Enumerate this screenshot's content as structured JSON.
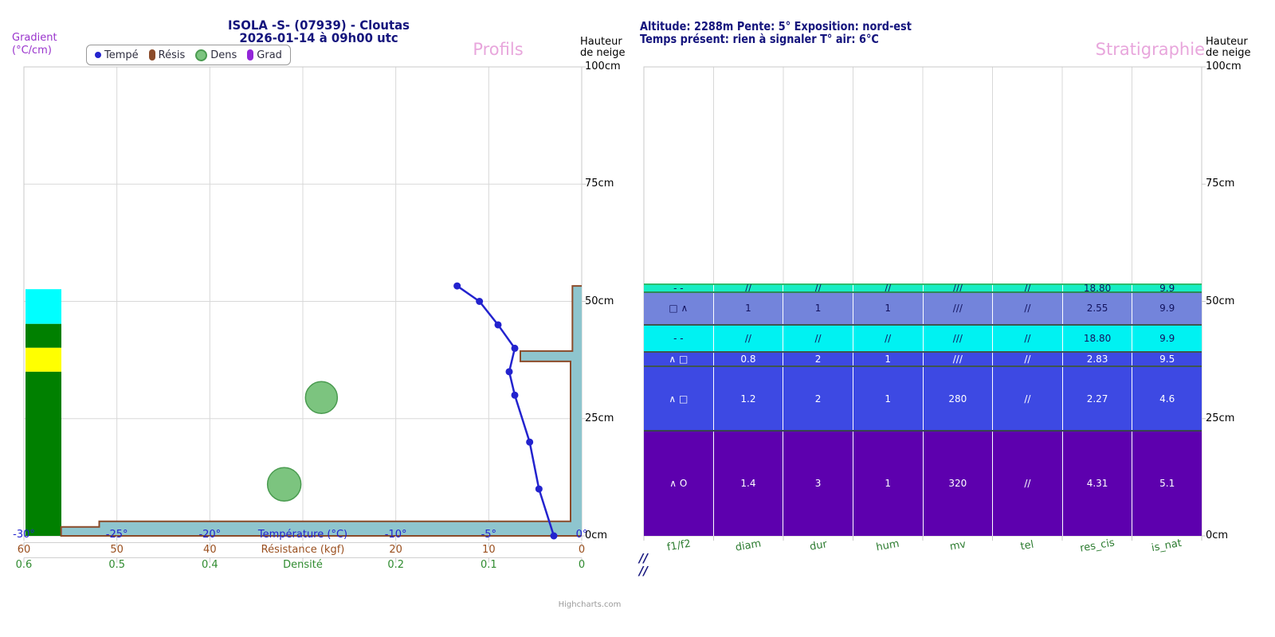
{
  "watermark": "Highcharts.com",
  "header": {
    "title": "ISOLA -S- (07939) - Cloutas",
    "subtitle": "2026-01-14 à 09h00 utc",
    "right_line1": "Altitude: 2288m Pente: 5° Exposition: nord-est",
    "right_line2": "Temps présent: rien à signaler T° air: 6°C"
  },
  "panels": {
    "left": {
      "title": "Profils",
      "gradient_label": [
        "Gradient",
        "(°C/cm)"
      ],
      "height_label": [
        "Hauteur",
        "de neige"
      ]
    },
    "right": {
      "title": "Stratigraphie",
      "height_label": [
        "Hauteur",
        "de neige"
      ],
      "surface_marks": [
        "//",
        "//"
      ]
    }
  },
  "legend": {
    "items": [
      {
        "label": "Tempé",
        "marker": "dot",
        "color": "#2323CE",
        "border": "#2323CE"
      },
      {
        "label": "Résis",
        "marker": "pill",
        "color": "#8B4B2A",
        "border": "#8B4B2A"
      },
      {
        "label": "Dens",
        "marker": "bubble",
        "color": "#7CC47F",
        "border": "#4A9B50"
      },
      {
        "label": "Grad",
        "marker": "pill",
        "color": "#9326D9",
        "border": "#9326D9"
      }
    ]
  },
  "chart_data": [
    {
      "panel": "Profils",
      "type": "line",
      "series": "Température",
      "color": "#2323CE",
      "x_axis": {
        "title": "Température (°C)",
        "range": [
          -30,
          0
        ],
        "tick_labels": [
          "-30°",
          "-25°",
          "-20°",
          null,
          "-10°",
          "-5°",
          "0°"
        ],
        "color": "#2323CE"
      },
      "y_axis": {
        "title": "Hauteur de neige",
        "range": [
          0,
          100
        ],
        "tick_values": [
          0,
          25,
          50,
          75,
          100
        ],
        "tick_labels": [
          "0cm",
          "25cm",
          "50cm",
          "75cm",
          "100cm"
        ]
      },
      "points": [
        {
          "height_cm": 53.3,
          "temp_c": -6.7
        },
        {
          "height_cm": 50,
          "temp_c": -5.5
        },
        {
          "height_cm": 45,
          "temp_c": -4.5
        },
        {
          "height_cm": 40,
          "temp_c": -3.6
        },
        {
          "height_cm": 35,
          "temp_c": -3.9
        },
        {
          "height_cm": 30,
          "temp_c": -3.6
        },
        {
          "height_cm": 20,
          "temp_c": -2.8
        },
        {
          "height_cm": 10,
          "temp_c": -2.3
        },
        {
          "height_cm": 0,
          "temp_c": -1.5
        }
      ]
    },
    {
      "panel": "Profils",
      "type": "area",
      "series": "Résistance",
      "fill": "#8EC5CE",
      "stroke": "#8B4B2A",
      "x_axis": {
        "title": "Résistance (kgf)",
        "range": [
          60,
          0
        ],
        "tick_labels": [
          "60",
          "50",
          "40",
          null,
          "20",
          "10",
          "0"
        ],
        "color": "#9A4F1E"
      },
      "steps": [
        {
          "from_cm": 0,
          "to_cm": 1.9,
          "kgf": 56
        },
        {
          "from_cm": 1.9,
          "to_cm": 3.1,
          "kgf": 51.9
        },
        {
          "from_cm": 3.1,
          "to_cm": 37.2,
          "kgf": 1.2
        },
        {
          "from_cm": 37.2,
          "to_cm": 39.4,
          "kgf": 6.6
        },
        {
          "from_cm": 39.4,
          "to_cm": 53.3,
          "kgf": 1.0
        }
      ]
    },
    {
      "panel": "Profils",
      "type": "bubble",
      "series": "Densité",
      "fill": "#7CC47F",
      "stroke": "#4A9B50",
      "x_axis": {
        "title": "Densité",
        "range": [
          0.6,
          0
        ],
        "tick_labels": [
          "0.6",
          "0.5",
          "0.4",
          null,
          "0.2",
          "0.1",
          "0"
        ],
        "color": "#2F8B2F"
      },
      "points": [
        {
          "height_cm": 29.5,
          "density": 0.28,
          "radius_px": 20
        },
        {
          "height_cm": 11,
          "density": 0.32,
          "radius_px": 21
        }
      ]
    },
    {
      "panel": "Profils",
      "type": "gradient-column",
      "series": "Gradient",
      "blocks": [
        {
          "from_cm": 45.2,
          "to_cm": 52.6,
          "color": "#00FFFF"
        },
        {
          "from_cm": 40.1,
          "to_cm": 45.2,
          "color": "#008000"
        },
        {
          "from_cm": 35.0,
          "to_cm": 40.1,
          "color": "#FFFF00"
        },
        {
          "from_cm": 0,
          "to_cm": 35.0,
          "color": "#008000"
        }
      ]
    },
    {
      "panel": "Stratigraphie",
      "type": "layer-table",
      "columns": [
        "f1/f2",
        "diam",
        "dur",
        "hum",
        "mv",
        "tel",
        "res_cis",
        "is_nat"
      ],
      "layers": [
        {
          "from_cm": 52.2,
          "to_cm": 53.8,
          "color": "#16EDC3",
          "text_color": "#13135E",
          "sep_color": "#2EBD6B",
          "values": [
            "- -",
            "//",
            "//",
            "//",
            "///",
            "//",
            "18.80",
            "9.9"
          ]
        },
        {
          "from_cm": 45.2,
          "to_cm": 52.2,
          "color": "#7384DB",
          "text_color": "#13135E",
          "sep_color": "#2E8B57",
          "values": [
            "□ ∧",
            "1",
            "1",
            "1",
            "///",
            "//",
            "2.55",
            "9.9"
          ]
        },
        {
          "from_cm": 39.4,
          "to_cm": 45.2,
          "color": "#00F2F2",
          "text_color": "#13135E",
          "sep_color": "#3F5650",
          "values": [
            "- -",
            "//",
            "//",
            "//",
            "///",
            "//",
            "18.80",
            "9.9"
          ]
        },
        {
          "from_cm": 36.3,
          "to_cm": 39.4,
          "color": "#3D49E3",
          "text_color": "#FFFFFF",
          "sep_color": "#3F5650",
          "values": [
            "∧ □",
            "0.8",
            "2",
            "1",
            "///",
            "//",
            "2.83",
            "9.5"
          ]
        },
        {
          "from_cm": 22.6,
          "to_cm": 36.3,
          "color": "#3D49E3",
          "text_color": "#FFFFFF",
          "sep_color": "#3F5650",
          "values": [
            "∧ □",
            "1.2",
            "2",
            "1",
            "280",
            "//",
            "2.27",
            "4.6"
          ]
        },
        {
          "from_cm": 0,
          "to_cm": 22.6,
          "color": "#5D00AE",
          "text_color": "#FFFFFF",
          "sep_color": "#36454F",
          "values": [
            "∧ O",
            "1.4",
            "3",
            "1",
            "320",
            "//",
            "4.31",
            "5.1"
          ]
        }
      ]
    }
  ]
}
